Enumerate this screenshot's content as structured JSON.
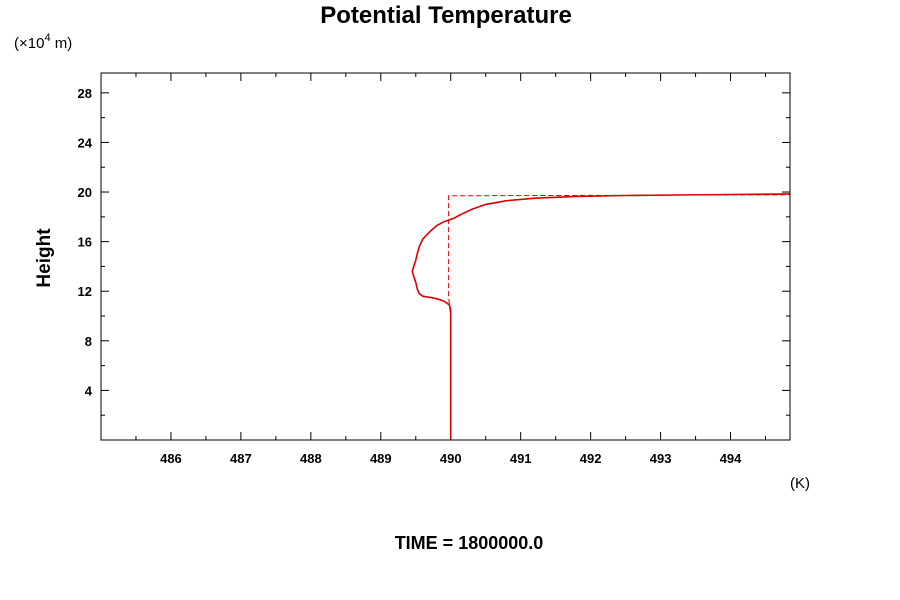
{
  "chart_data": {
    "type": "line",
    "title": "Potential Temperature",
    "ylabel": "Height",
    "y_unit_prefix": "(×10",
    "y_unit_exponent": "4",
    "y_unit_suffix": " m)",
    "x_unit": "(K)",
    "footer": "TIME = 1800000.0",
    "xlim": [
      485.0,
      494.85
    ],
    "ylim": [
      0,
      29.6
    ],
    "x_ticks": [
      486,
      487,
      488,
      489,
      490,
      491,
      492,
      493,
      494
    ],
    "y_ticks": [
      4,
      8,
      12,
      16,
      20,
      24,
      28
    ],
    "x_minor_step": 0.5,
    "y_minor_step": 2,
    "grid": false,
    "colors": {
      "series": "#dd0000",
      "axis": "#000000"
    },
    "series": [
      {
        "style": "solid",
        "x": [
          490.0,
          490.0,
          490.0,
          489.98,
          489.9,
          489.8,
          489.7,
          489.6,
          489.55,
          489.52,
          489.5,
          489.47,
          489.45,
          489.47,
          489.5,
          489.52,
          489.55,
          489.6,
          489.7,
          489.8,
          489.9,
          490.05,
          490.15,
          490.3,
          490.5,
          490.8,
          491.2,
          491.8,
          492.5,
          493.2,
          494.0,
          494.85
        ],
        "y": [
          0.0,
          10.0,
          10.5,
          10.9,
          11.2,
          11.4,
          11.5,
          11.6,
          11.8,
          12.2,
          12.7,
          13.2,
          13.6,
          14.0,
          14.5,
          15.0,
          15.6,
          16.2,
          16.8,
          17.3,
          17.6,
          17.9,
          18.2,
          18.6,
          19.0,
          19.3,
          19.5,
          19.65,
          19.72,
          19.76,
          19.8,
          19.85
        ]
      },
      {
        "style": "dashed",
        "x": [
          490.0,
          490.0,
          489.97,
          489.97,
          490.5,
          491.5,
          492.5,
          493.5,
          494.85
        ],
        "y": [
          0.0,
          10.0,
          11.5,
          19.7,
          19.7,
          19.72,
          19.74,
          19.76,
          19.78
        ]
      }
    ]
  }
}
